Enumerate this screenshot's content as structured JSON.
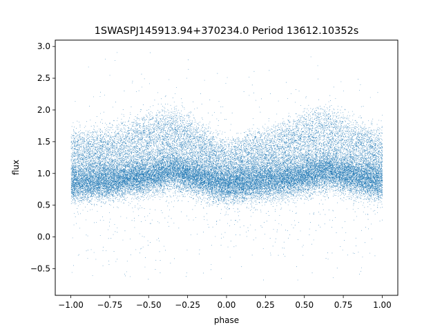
{
  "chart_data": {
    "type": "scatter",
    "title": "1SWASPJ145913.94+370234.0 Period 13612.10352s",
    "xlabel": "phase",
    "ylabel": "flux",
    "xlim": [
      -1.1,
      1.1
    ],
    "ylim": [
      -0.92,
      3.1
    ],
    "xticks": [
      -1.0,
      -0.75,
      -0.5,
      -0.25,
      0.0,
      0.25,
      0.5,
      0.75,
      1.0
    ],
    "xtick_labels": [
      "−1.00",
      "−0.75",
      "−0.50",
      "−0.25",
      "0.00",
      "0.25",
      "0.50",
      "0.75",
      "1.00"
    ],
    "yticks": [
      -0.5,
      0.0,
      0.5,
      1.0,
      1.5,
      2.0,
      2.5,
      3.0
    ],
    "ytick_labels": [
      "−0.5",
      "0.0",
      "0.5",
      "1.0",
      "1.5",
      "2.0",
      "2.5",
      "3.0"
    ],
    "grid": false,
    "marker_color": "#1f77b4",
    "series": [
      {
        "phase_range": [
          -1.0,
          1.0
        ],
        "point_count_approx": 40000,
        "profile": {
          "phase": [
            -1.0,
            -0.75,
            -0.5,
            -0.35,
            -0.25,
            0.0,
            0.25,
            0.5,
            0.65,
            0.75,
            1.0
          ],
          "median_flux": [
            0.85,
            0.88,
            0.95,
            1.05,
            0.98,
            0.82,
            0.88,
            0.95,
            1.05,
            0.98,
            0.85
          ],
          "upper_flux": [
            1.45,
            1.5,
            1.75,
            1.85,
            1.7,
            1.3,
            1.5,
            1.75,
            1.85,
            1.7,
            1.45
          ]
        },
        "flux_range": [
          -0.7,
          2.95
        ]
      }
    ]
  }
}
